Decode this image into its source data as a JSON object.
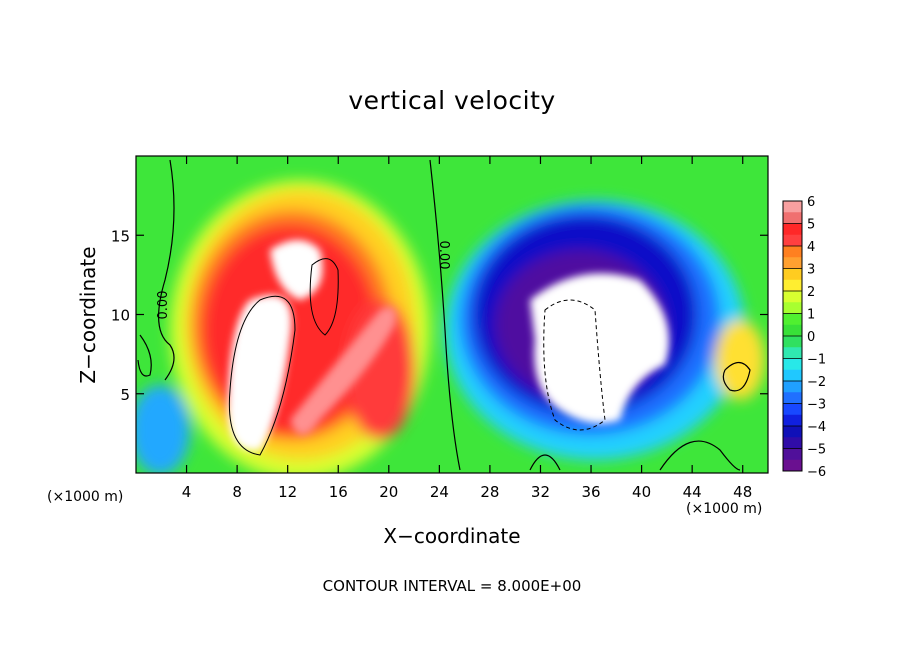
{
  "chart_data": {
    "type": "heatmap",
    "title": "vertical velocity",
    "xlabel": "X−coordinate",
    "ylabel": "Z−coordinate",
    "x_unit": "(×1000 m)",
    "xlim": [
      0,
      50
    ],
    "ylim": [
      0,
      20
    ],
    "x_ticks": [
      4,
      8,
      12,
      16,
      20,
      24,
      28,
      32,
      36,
      40,
      44,
      48
    ],
    "y_ticks": [
      5,
      10,
      15
    ],
    "colorbar": {
      "min": -6,
      "max": 6,
      "tick_labels": [
        "6",
        "5",
        "4",
        "3",
        "2",
        "1",
        "0",
        "−1",
        "−2",
        "−3",
        "−4",
        "−5",
        "−6"
      ]
    },
    "contour_label": "0.00",
    "contour_interval": "CONTOUR INTERVAL = 8.000E+00",
    "features": [
      {
        "name": "updraft",
        "sign": "positive",
        "x_range": [
          6,
          23
        ],
        "z_range": [
          1,
          18
        ],
        "peak": "above 6"
      },
      {
        "name": "downdraft",
        "sign": "negative",
        "x_range": [
          26,
          43
        ],
        "z_range": [
          2,
          17
        ],
        "peak": "below -6"
      }
    ],
    "colors": {
      "background": "#39e639",
      "positive": "#ff3030",
      "negative": "#2020d0",
      "saturated": "#ffffff"
    }
  }
}
